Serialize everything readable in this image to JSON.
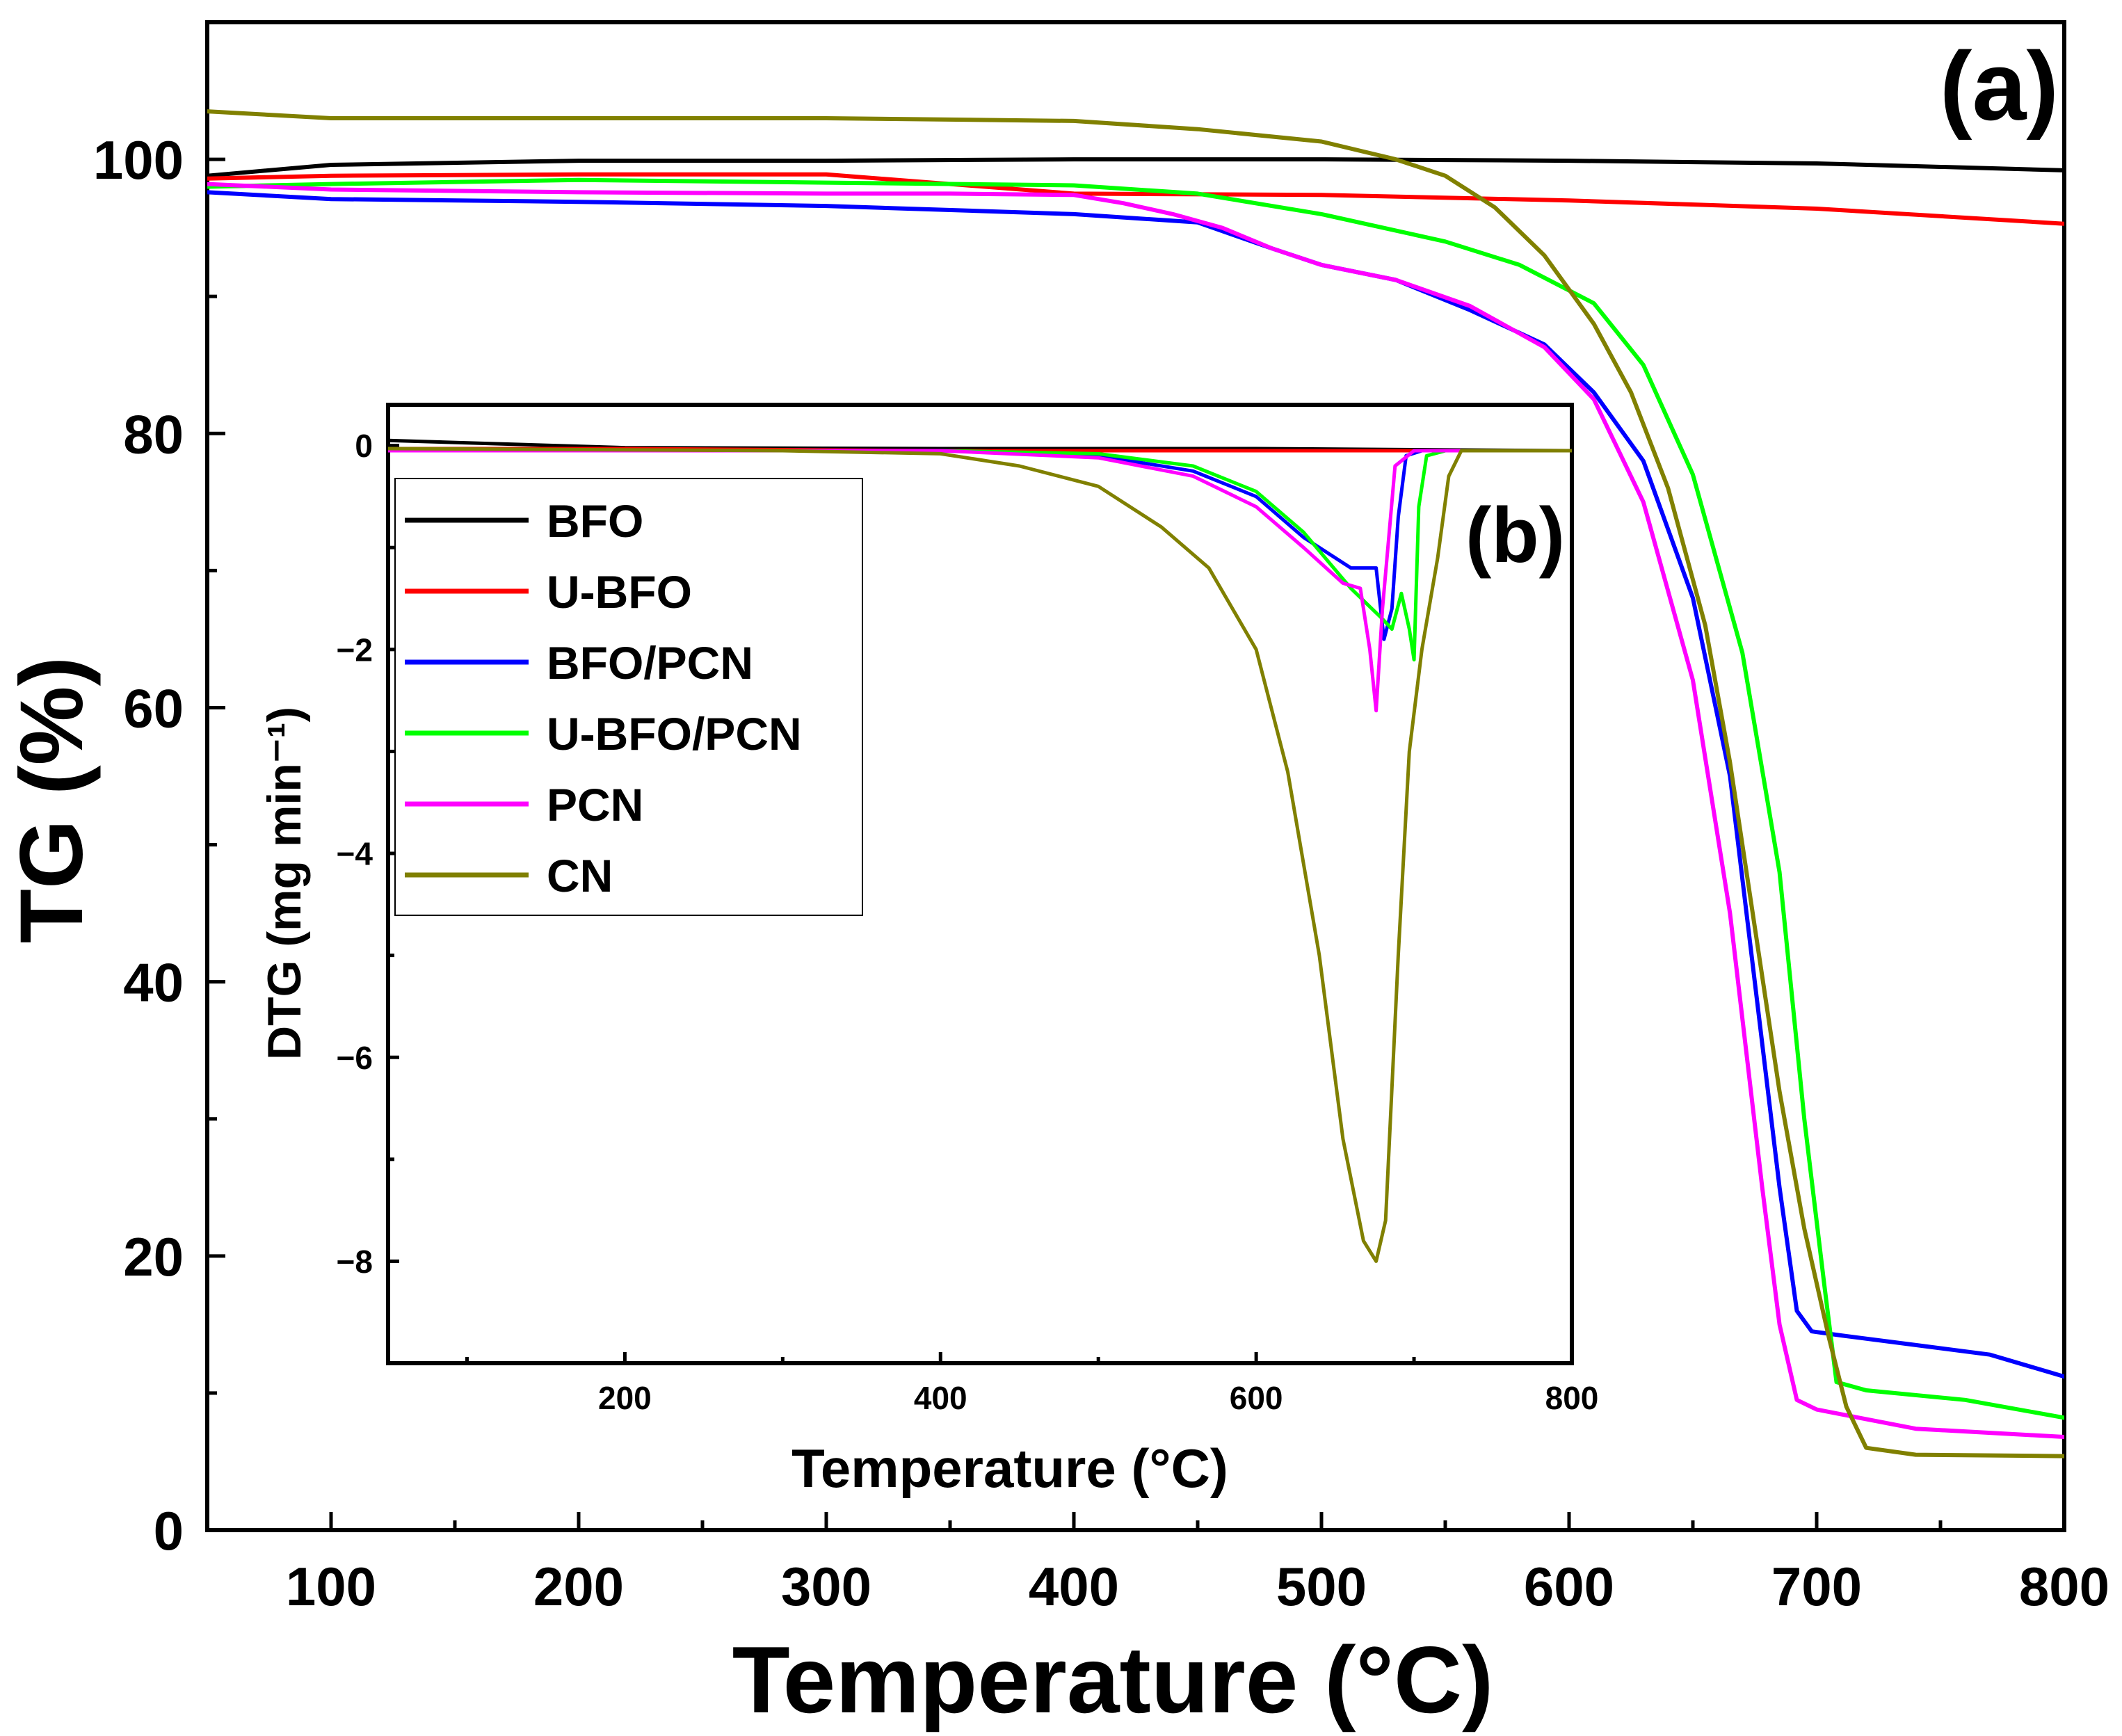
{
  "chart_data": [
    {
      "id": "main",
      "type": "line",
      "panel_label": "(a)",
      "xlabel": "Temperature (°C)",
      "ylabel": "TG (%)",
      "xlim": [
        50,
        800
      ],
      "ylim": [
        0,
        110
      ],
      "x_ticks": [
        100,
        200,
        300,
        400,
        500,
        600,
        700,
        800
      ],
      "y_ticks": [
        0,
        20,
        40,
        60,
        80,
        100
      ],
      "x_tick_labels": [
        "100",
        "200",
        "300",
        "400",
        "500",
        "600",
        "700",
        "800"
      ],
      "y_tick_labels": [
        "0",
        "20",
        "40",
        "60",
        "80",
        "100"
      ],
      "series": [
        {
          "name": "BFO",
          "color": "#000000",
          "points": [
            [
              50,
              98.8
            ],
            [
              100,
              99.6
            ],
            [
              200,
              99.9
            ],
            [
              300,
              99.9
            ],
            [
              400,
              100
            ],
            [
              500,
              100
            ],
            [
              600,
              99.9
            ],
            [
              700,
              99.7
            ],
            [
              800,
              99.2
            ]
          ]
        },
        {
          "name": "U-BFO",
          "color": "#ff0000",
          "points": [
            [
              50,
              98.6
            ],
            [
              100,
              98.8
            ],
            [
              200,
              98.9
            ],
            [
              300,
              98.9
            ],
            [
              400,
              97.5
            ],
            [
              500,
              97.4
            ],
            [
              600,
              97
            ],
            [
              700,
              96.4
            ],
            [
              800,
              95.3
            ]
          ]
        },
        {
          "name": "BFO/PCN",
          "color": "#0000ff",
          "points": [
            [
              50,
              97.6
            ],
            [
              100,
              97.1
            ],
            [
              200,
              96.9
            ],
            [
              300,
              96.6
            ],
            [
              400,
              96
            ],
            [
              450,
              95.4
            ],
            [
              480,
              93.5
            ],
            [
              500,
              92.3
            ],
            [
              530,
              91.2
            ],
            [
              560,
              89
            ],
            [
              590,
              86.5
            ],
            [
              610,
              83
            ],
            [
              630,
              78
            ],
            [
              650,
              68
            ],
            [
              665,
              55
            ],
            [
              675,
              40
            ],
            [
              685,
              25
            ],
            [
              692,
              16
            ],
            [
              698,
              14.5
            ],
            [
              710,
              14.2
            ],
            [
              740,
              13.5
            ],
            [
              770,
              12.8
            ],
            [
              800,
              11.2
            ]
          ]
        },
        {
          "name": "U-BFO/PCN",
          "color": "#00ff00",
          "points": [
            [
              50,
              98
            ],
            [
              100,
              98.2
            ],
            [
              200,
              98.5
            ],
            [
              300,
              98.3
            ],
            [
              400,
              98.1
            ],
            [
              450,
              97.5
            ],
            [
              500,
              96
            ],
            [
              550,
              94
            ],
            [
              580,
              92.3
            ],
            [
              610,
              89.5
            ],
            [
              630,
              85
            ],
            [
              650,
              77
            ],
            [
              670,
              64
            ],
            [
              685,
              48
            ],
            [
              695,
              30
            ],
            [
              703,
              18
            ],
            [
              708,
              10.8
            ],
            [
              720,
              10.2
            ],
            [
              760,
              9.5
            ],
            [
              800,
              8.2
            ]
          ]
        },
        {
          "name": "PCN",
          "color": "#ff00ff",
          "points": [
            [
              50,
              98.2
            ],
            [
              100,
              97.8
            ],
            [
              200,
              97.6
            ],
            [
              300,
              97.5
            ],
            [
              350,
              97.5
            ],
            [
              400,
              97.4
            ],
            [
              420,
              96.8
            ],
            [
              440,
              96
            ],
            [
              460,
              95
            ],
            [
              480,
              93.5
            ],
            [
              500,
              92.3
            ],
            [
              530,
              91.2
            ],
            [
              560,
              89.3
            ],
            [
              590,
              86.3
            ],
            [
              610,
              82.5
            ],
            [
              630,
              75
            ],
            [
              650,
              62
            ],
            [
              665,
              45
            ],
            [
              678,
              25
            ],
            [
              685,
              15
            ],
            [
              692,
              9.5
            ],
            [
              700,
              8.8
            ],
            [
              740,
              7.4
            ],
            [
              800,
              6.8
            ]
          ]
        },
        {
          "name": "CN",
          "color": "#808000",
          "points": [
            [
              50,
              103.5
            ],
            [
              100,
              103
            ],
            [
              200,
              103
            ],
            [
              300,
              103
            ],
            [
              400,
              102.8
            ],
            [
              450,
              102.2
            ],
            [
              500,
              101.3
            ],
            [
              530,
              100
            ],
            [
              550,
              98.8
            ],
            [
              570,
              96.5
            ],
            [
              590,
              93
            ],
            [
              610,
              88
            ],
            [
              625,
              83
            ],
            [
              640,
              76
            ],
            [
              655,
              66
            ],
            [
              665,
              56
            ],
            [
              675,
              44
            ],
            [
              685,
              32
            ],
            [
              695,
              22
            ],
            [
              705,
              14
            ],
            [
              712,
              9
            ],
            [
              720,
              6
            ],
            [
              740,
              5.5
            ],
            [
              800,
              5.4
            ]
          ]
        }
      ]
    },
    {
      "id": "inset",
      "type": "line",
      "panel_label": "(b)",
      "xlabel": "Temperature (°C)",
      "ylabel": "DTG (mg min⁻¹)",
      "xlim": [
        50,
        800
      ],
      "ylim": [
        -9,
        0.4
      ],
      "x_ticks": [
        200,
        400,
        600,
        800
      ],
      "y_ticks": [
        0,
        -2,
        -4,
        -6,
        -8
      ],
      "x_tick_labels": [
        "200",
        "400",
        "600",
        "800"
      ],
      "y_tick_labels": [
        "0",
        "−2",
        "−4",
        "−6",
        "−8"
      ],
      "legend": {
        "position": "upper-left",
        "entries": [
          "BFO",
          "U-BFO",
          "BFO/PCN",
          "U-BFO/PCN",
          "PCN",
          "CN"
        ]
      },
      "series": [
        {
          "name": "BFO",
          "color": "#000000",
          "points": [
            [
              50,
              0.05
            ],
            [
              200,
              -0.02
            ],
            [
              400,
              -0.03
            ],
            [
              600,
              -0.03
            ],
            [
              800,
              -0.05
            ]
          ]
        },
        {
          "name": "U-BFO",
          "color": "#ff0000",
          "points": [
            [
              50,
              -0.03
            ],
            [
              200,
              -0.03
            ],
            [
              400,
              -0.05
            ],
            [
              600,
              -0.05
            ],
            [
              800,
              -0.05
            ]
          ]
        },
        {
          "name": "BFO/PCN",
          "color": "#0000ff",
          "points": [
            [
              50,
              -0.05
            ],
            [
              400,
              -0.05
            ],
            [
              500,
              -0.1
            ],
            [
              560,
              -0.25
            ],
            [
              600,
              -0.5
            ],
            [
              630,
              -0.9
            ],
            [
              660,
              -1.2
            ],
            [
              676,
              -1.2
            ],
            [
              681,
              -1.9
            ],
            [
              686,
              -1.6
            ],
            [
              690,
              -0.7
            ],
            [
              695,
              -0.1
            ],
            [
              705,
              -0.05
            ],
            [
              800,
              -0.05
            ]
          ]
        },
        {
          "name": "U-BFO/PCN",
          "color": "#00ff00",
          "points": [
            [
              50,
              -0.05
            ],
            [
              400,
              -0.05
            ],
            [
              500,
              -0.08
            ],
            [
              560,
              -0.2
            ],
            [
              600,
              -0.45
            ],
            [
              630,
              -0.85
            ],
            [
              660,
              -1.4
            ],
            [
              680,
              -1.7
            ],
            [
              686,
              -1.8
            ],
            [
              692,
              -1.45
            ],
            [
              697,
              -1.8
            ],
            [
              700,
              -2.1
            ],
            [
              703,
              -0.6
            ],
            [
              708,
              -0.1
            ],
            [
              720,
              -0.05
            ],
            [
              800,
              -0.05
            ]
          ]
        },
        {
          "name": "PCN",
          "color": "#ff00ff",
          "points": [
            [
              50,
              -0.05
            ],
            [
              400,
              -0.05
            ],
            [
              500,
              -0.12
            ],
            [
              560,
              -0.3
            ],
            [
              600,
              -0.6
            ],
            [
              630,
              -1.0
            ],
            [
              655,
              -1.35
            ],
            [
              666,
              -1.4
            ],
            [
              672,
              -2.0
            ],
            [
              676,
              -2.6
            ],
            [
              680,
              -1.6
            ],
            [
              684,
              -0.9
            ],
            [
              688,
              -0.2
            ],
            [
              700,
              -0.05
            ],
            [
              800,
              -0.05
            ]
          ]
        },
        {
          "name": "CN",
          "color": "#808000",
          "points": [
            [
              50,
              -0.03
            ],
            [
              300,
              -0.05
            ],
            [
              400,
              -0.08
            ],
            [
              450,
              -0.2
            ],
            [
              500,
              -0.4
            ],
            [
              540,
              -0.8
            ],
            [
              570,
              -1.2
            ],
            [
              600,
              -2.0
            ],
            [
              620,
              -3.2
            ],
            [
              640,
              -5.0
            ],
            [
              655,
              -6.8
            ],
            [
              668,
              -7.8
            ],
            [
              676,
              -8.0
            ],
            [
              682,
              -7.6
            ],
            [
              690,
              -5.0
            ],
            [
              697,
              -3.0
            ],
            [
              705,
              -2.0
            ],
            [
              715,
              -1.1
            ],
            [
              722,
              -0.3
            ],
            [
              730,
              -0.05
            ],
            [
              800,
              -0.05
            ]
          ]
        }
      ]
    }
  ]
}
